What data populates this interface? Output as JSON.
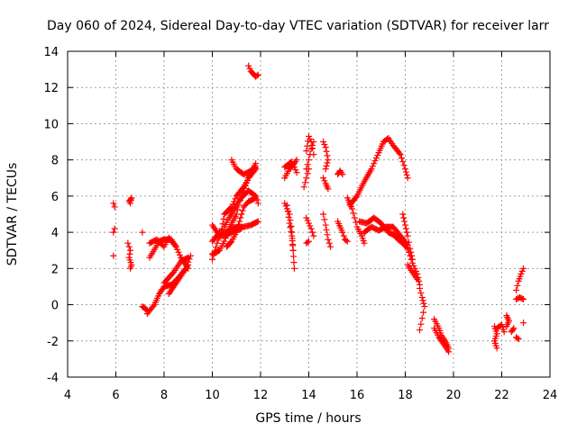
{
  "chart_data": {
    "type": "scatter",
    "title": "Day 060 of 2024, Sidereal Day-to-day VTEC variation (SDTVAR) for receiver larr",
    "xlabel": "GPS time / hours",
    "ylabel": "SDTVAR / TECUs",
    "xlim": [
      4,
      24
    ],
    "ylim": [
      -4,
      14
    ],
    "xticks": [
      "4",
      "6",
      "8",
      "10",
      "12",
      "14",
      "16",
      "18",
      "20",
      "22",
      "24"
    ],
    "yticks": [
      "-4",
      "-2",
      "0",
      "2",
      "4",
      "6",
      "8",
      "10",
      "12",
      "14"
    ],
    "grid": true,
    "marker": "+",
    "color": "#ff0000",
    "segments": [
      [
        [
          5.9,
          5.6
        ],
        [
          5.95,
          5.4
        ]
      ],
      [
        [
          5.95,
          4.2
        ],
        [
          5.9,
          4.0
        ]
      ],
      [
        [
          5.9,
          2.7
        ]
      ],
      [
        [
          6.55,
          5.7
        ],
        [
          6.65,
          5.9
        ],
        [
          6.6,
          5.6
        ]
      ],
      [
        [
          6.5,
          3.4
        ],
        [
          6.6,
          3.0
        ],
        [
          6.55,
          2.6
        ],
        [
          6.65,
          2.2
        ],
        [
          6.6,
          2.0
        ]
      ],
      [
        [
          7.1,
          4.0
        ]
      ],
      [
        [
          7.1,
          -0.1
        ],
        [
          7.3,
          -0.3
        ]
      ],
      [
        [
          7.3,
          -0.5
        ],
        [
          7.6,
          0.0
        ],
        [
          7.8,
          0.6
        ],
        [
          8.0,
          1.0
        ],
        [
          8.3,
          1.1
        ],
        [
          8.6,
          1.5
        ],
        [
          8.9,
          2.0
        ],
        [
          9.1,
          2.7
        ]
      ],
      [
        [
          7.4,
          3.4
        ],
        [
          7.7,
          3.6
        ],
        [
          8.0,
          3.2
        ],
        [
          8.2,
          3.7
        ],
        [
          8.5,
          3.2
        ],
        [
          8.7,
          2.6
        ],
        [
          9.0,
          2.0
        ]
      ],
      [
        [
          7.4,
          2.6
        ],
        [
          7.8,
          3.5
        ],
        [
          8.0,
          3.6
        ],
        [
          8.3,
          3.6
        ],
        [
          8.5,
          3.2
        ]
      ],
      [
        [
          8.0,
          1.2
        ],
        [
          8.4,
          1.8
        ],
        [
          8.7,
          2.4
        ],
        [
          9.0,
          2.6
        ]
      ],
      [
        [
          8.2,
          0.6
        ],
        [
          8.5,
          1.2
        ],
        [
          8.8,
          1.8
        ],
        [
          9.0,
          2.2
        ]
      ],
      [
        [
          10.0,
          2.5
        ],
        [
          10.2,
          3.4
        ],
        [
          10.4,
          4.2
        ],
        [
          10.5,
          5.0
        ],
        [
          10.8,
          5.4
        ],
        [
          11.0,
          6.0
        ],
        [
          11.3,
          6.5
        ],
        [
          11.5,
          7.0
        ],
        [
          11.8,
          7.5
        ]
      ],
      [
        [
          10.0,
          2.8
        ],
        [
          10.3,
          3.0
        ],
        [
          10.5,
          3.5
        ],
        [
          10.7,
          4.2
        ],
        [
          11.0,
          5.0
        ],
        [
          11.2,
          6.0
        ],
        [
          11.5,
          7.0
        ],
        [
          11.8,
          7.8
        ]
      ],
      [
        [
          10.0,
          3.5
        ],
        [
          10.3,
          4.0
        ],
        [
          10.5,
          4.0
        ],
        [
          10.7,
          4.1
        ],
        [
          11.0,
          4.3
        ],
        [
          11.3,
          4.3
        ],
        [
          11.6,
          4.4
        ],
        [
          11.9,
          4.6
        ]
      ],
      [
        [
          10.0,
          4.4
        ],
        [
          10.3,
          3.8
        ],
        [
          10.5,
          3.8
        ],
        [
          10.8,
          4.0
        ],
        [
          11.2,
          4.2
        ]
      ],
      [
        [
          10.5,
          4.3
        ],
        [
          10.7,
          4.8
        ],
        [
          11.0,
          5.5
        ],
        [
          11.2,
          5.9
        ],
        [
          11.5,
          6.3
        ],
        [
          11.8,
          6.0
        ],
        [
          11.9,
          5.6
        ]
      ],
      [
        [
          10.8,
          8.0
        ],
        [
          11.0,
          7.5
        ],
        [
          11.3,
          7.2
        ],
        [
          11.6,
          7.4
        ],
        [
          11.8,
          7.6
        ]
      ],
      [
        [
          10.6,
          3.2
        ],
        [
          10.8,
          3.5
        ],
        [
          11.0,
          4.0
        ],
        [
          11.3,
          5.4
        ],
        [
          11.5,
          5.7
        ],
        [
          11.8,
          5.9
        ]
      ],
      [
        [
          11.5,
          13.2
        ],
        [
          11.6,
          12.9
        ],
        [
          11.8,
          12.6
        ],
        [
          11.9,
          12.7
        ]
      ],
      [
        [
          13.0,
          5.6
        ],
        [
          13.2,
          5.0
        ],
        [
          13.3,
          4.0
        ],
        [
          13.35,
          3.0
        ],
        [
          13.4,
          2.0
        ]
      ],
      [
        [
          13.1,
          5.5
        ],
        [
          13.2,
          4.5
        ],
        [
          13.3,
          3.8
        ],
        [
          13.35,
          3.0
        ]
      ],
      [
        [
          13.0,
          7.0
        ],
        [
          13.2,
          7.5
        ],
        [
          13.4,
          7.8
        ],
        [
          13.5,
          8.0
        ]
      ],
      [
        [
          13.0,
          7.6
        ],
        [
          13.3,
          7.9
        ],
        [
          13.5,
          7.3
        ]
      ],
      [
        [
          13.9,
          8.5
        ],
        [
          14.0,
          9.3
        ],
        [
          14.1,
          9.0
        ],
        [
          14.2,
          8.3
        ]
      ],
      [
        [
          13.9,
          7.5
        ],
        [
          14.0,
          8.0
        ],
        [
          14.1,
          8.6
        ],
        [
          14.2,
          9.0
        ]
      ],
      [
        [
          13.8,
          6.5
        ],
        [
          13.9,
          7.0
        ],
        [
          14.0,
          7.5
        ]
      ],
      [
        [
          13.9,
          4.8
        ],
        [
          14.0,
          4.5
        ],
        [
          14.1,
          4.2
        ],
        [
          14.2,
          3.8
        ]
      ],
      [
        [
          13.9,
          3.4
        ],
        [
          14.0,
          3.5
        ]
      ],
      [
        [
          14.6,
          9.0
        ],
        [
          14.7,
          8.7
        ],
        [
          14.8,
          8.0
        ],
        [
          14.7,
          7.5
        ]
      ],
      [
        [
          14.6,
          7.0
        ],
        [
          14.7,
          6.7
        ],
        [
          14.8,
          6.4
        ]
      ],
      [
        [
          14.6,
          5.0
        ],
        [
          14.7,
          4.4
        ],
        [
          14.8,
          3.6
        ],
        [
          14.9,
          3.2
        ]
      ],
      [
        [
          15.2,
          7.2
        ],
        [
          15.3,
          7.4
        ],
        [
          15.4,
          7.2
        ]
      ],
      [
        [
          15.2,
          4.6
        ],
        [
          15.4,
          4.0
        ],
        [
          15.5,
          3.6
        ],
        [
          15.6,
          3.5
        ]
      ],
      [
        [
          15.6,
          5.9
        ],
        [
          15.8,
          5.3
        ],
        [
          16.0,
          4.3
        ],
        [
          16.2,
          3.8
        ],
        [
          16.3,
          3.4
        ]
      ],
      [
        [
          15.7,
          5.5
        ],
        [
          16.0,
          6.0
        ],
        [
          16.3,
          6.8
        ],
        [
          16.6,
          7.5
        ],
        [
          16.9,
          8.4
        ],
        [
          17.1,
          9.0
        ],
        [
          17.3,
          9.2
        ],
        [
          17.5,
          8.8
        ],
        [
          17.8,
          8.3
        ],
        [
          18.0,
          7.5
        ],
        [
          18.1,
          7.0
        ]
      ],
      [
        [
          16.1,
          4.6
        ],
        [
          16.4,
          4.5
        ],
        [
          16.7,
          4.8
        ],
        [
          17.0,
          4.5
        ],
        [
          17.3,
          4.0
        ],
        [
          17.6,
          3.8
        ],
        [
          17.9,
          3.5
        ],
        [
          18.1,
          3.3
        ]
      ],
      [
        [
          16.3,
          4.0
        ],
        [
          16.6,
          4.3
        ],
        [
          16.9,
          4.1
        ],
        [
          17.2,
          4.3
        ],
        [
          17.5,
          4.3
        ],
        [
          17.8,
          3.8
        ],
        [
          18.0,
          3.5
        ]
      ],
      [
        [
          17.5,
          3.9
        ],
        [
          17.7,
          3.6
        ],
        [
          17.9,
          3.4
        ],
        [
          18.1,
          3.1
        ],
        [
          18.3,
          2.3
        ],
        [
          18.5,
          1.7
        ],
        [
          18.6,
          1.1
        ]
      ],
      [
        [
          17.9,
          5.0
        ],
        [
          18.0,
          4.4
        ],
        [
          18.1,
          3.8
        ],
        [
          18.2,
          3.1
        ],
        [
          18.3,
          2.5
        ]
      ],
      [
        [
          18.1,
          2.2
        ],
        [
          18.3,
          1.8
        ],
        [
          18.5,
          1.4
        ]
      ],
      [
        [
          18.6,
          0.9
        ],
        [
          18.7,
          0.4
        ],
        [
          18.8,
          -0.1
        ],
        [
          18.6,
          -1.4
        ]
      ],
      [
        [
          19.2,
          -0.8
        ],
        [
          19.4,
          -1.3
        ],
        [
          19.5,
          -1.7
        ],
        [
          19.7,
          -2.1
        ],
        [
          19.8,
          -2.4
        ]
      ],
      [
        [
          19.2,
          -1.3
        ],
        [
          19.4,
          -1.8
        ],
        [
          19.6,
          -2.2
        ],
        [
          19.8,
          -2.6
        ]
      ],
      [
        [
          21.7,
          -1.2
        ],
        [
          21.8,
          -1.6
        ],
        [
          21.7,
          -2.0
        ],
        [
          21.8,
          -2.4
        ]
      ],
      [
        [
          21.8,
          -1.3
        ],
        [
          22.0,
          -1.1
        ],
        [
          22.1,
          -1.5
        ]
      ],
      [
        [
          22.2,
          -0.6
        ],
        [
          22.3,
          -0.9
        ],
        [
          22.2,
          -1.2
        ]
      ],
      [
        [
          22.4,
          -1.5
        ],
        [
          22.5,
          -1.3
        ]
      ],
      [
        [
          22.6,
          0.8
        ],
        [
          22.7,
          1.3
        ],
        [
          22.8,
          1.7
        ],
        [
          22.9,
          2.0
        ]
      ],
      [
        [
          22.6,
          0.3
        ],
        [
          22.75,
          0.4
        ],
        [
          22.9,
          0.3
        ]
      ],
      [
        [
          22.6,
          -1.8
        ],
        [
          22.7,
          -1.9
        ]
      ],
      [
        [
          22.9,
          -1.0
        ]
      ]
    ]
  }
}
